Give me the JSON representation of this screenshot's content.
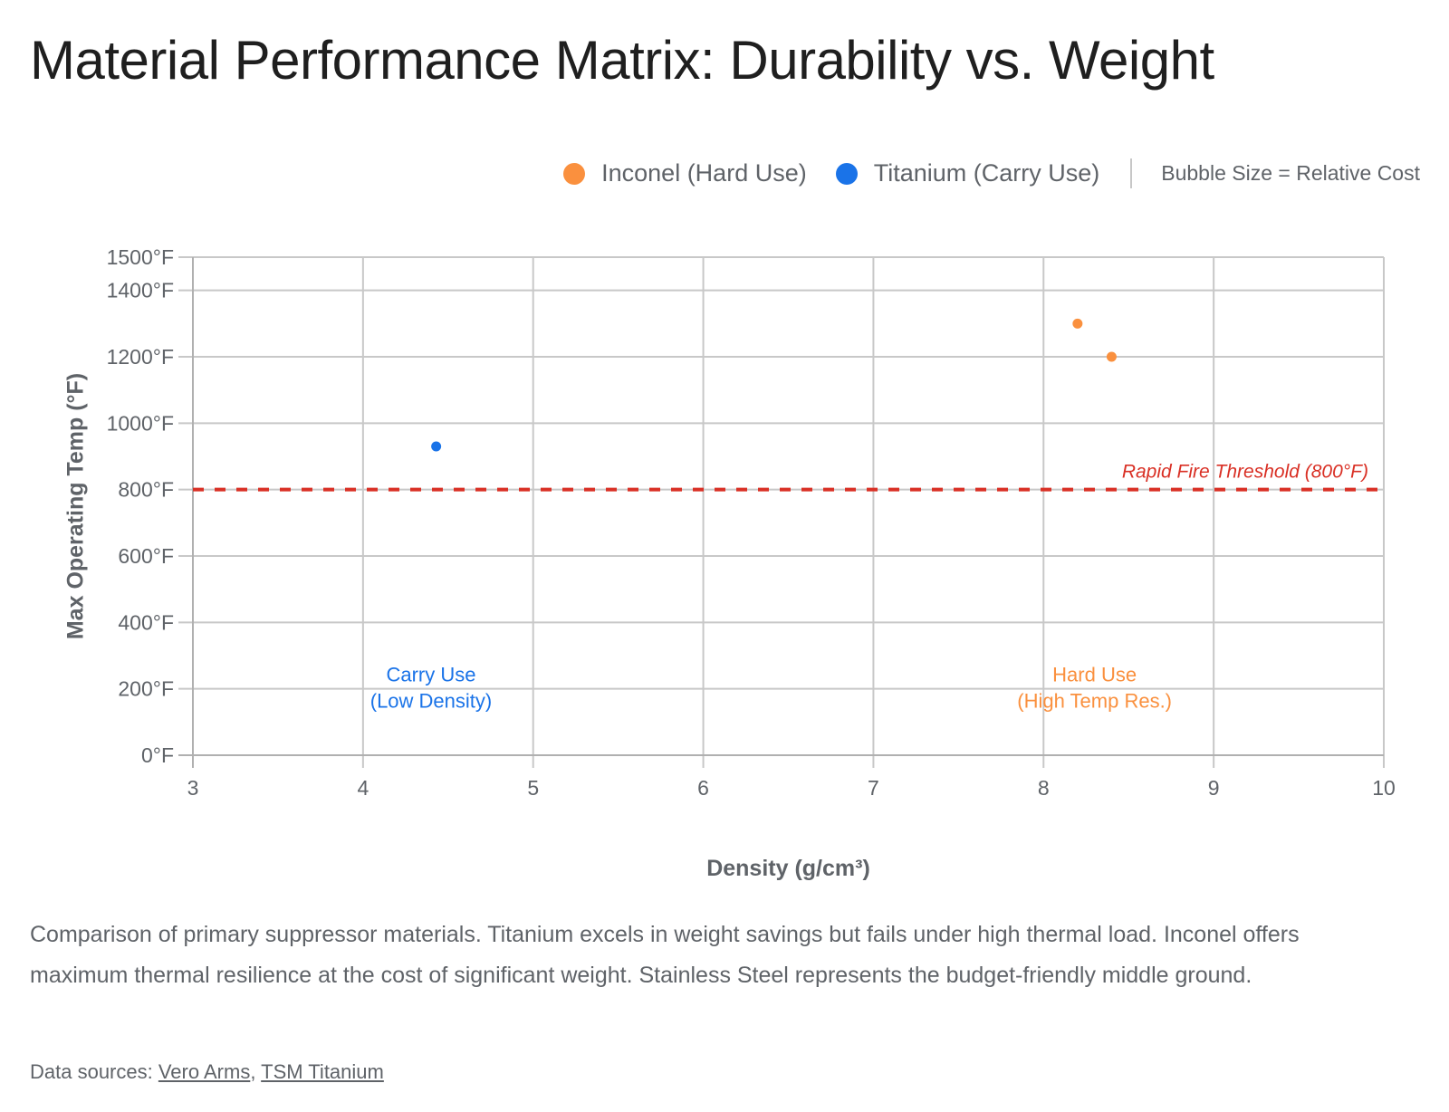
{
  "title": "Material Performance Matrix: Durability vs. Weight",
  "legend": {
    "items": [
      {
        "label": "Inconel (Hard Use)",
        "color": "#fa903e"
      },
      {
        "label": "Titanium (Carry Use)",
        "color": "#1a73e8"
      }
    ],
    "note": "Bubble Size = Relative Cost"
  },
  "caption": "Comparison of primary suppressor materials. Titanium excels in weight savings but fails under high thermal load. Inconel offers maximum thermal resilience at the cost of significant weight. Stainless Steel represents the budget-friendly middle ground.",
  "sources": {
    "prefix": "Data sources: ",
    "separator": ", ",
    "links": [
      "Vero Arms",
      "TSM Titanium"
    ]
  },
  "chart_data": {
    "type": "scatter",
    "title": "Material Performance Matrix: Durability vs. Weight",
    "xlabel": "Density (g/cm³)",
    "ylabel": "Max Operating Temp (°F)",
    "xlim": [
      3,
      10
    ],
    "ylim": [
      0,
      1500
    ],
    "x_ticks": [
      3,
      4,
      5,
      6,
      7,
      8,
      9,
      10
    ],
    "y_ticks": [
      0,
      200,
      400,
      600,
      800,
      1000,
      1200,
      1400,
      1500
    ],
    "y_tick_suffix": "°F",
    "grid": true,
    "legend_position": "top-right",
    "series": [
      {
        "name": "Inconel (Hard Use)",
        "color": "#fa903e",
        "points": [
          {
            "x": 8.2,
            "y": 1300
          },
          {
            "x": 8.4,
            "y": 1200
          }
        ]
      },
      {
        "name": "Titanium (Carry Use)",
        "color": "#1a73e8",
        "points": [
          {
            "x": 4.43,
            "y": 930
          }
        ]
      }
    ],
    "reference_lines": [
      {
        "axis": "y",
        "value": 800,
        "label": "Rapid Fire Threshold (800°F)",
        "color": "#d93025",
        "style": "dashed"
      }
    ],
    "annotations": [
      {
        "lines": [
          "Carry Use",
          "(Low Density)"
        ],
        "x": 4.4,
        "y": 200,
        "color": "#1a73e8"
      },
      {
        "lines": [
          "Hard Use",
          "(High Temp Res.)"
        ],
        "x": 8.3,
        "y": 200,
        "color": "#fa903e"
      }
    ]
  }
}
